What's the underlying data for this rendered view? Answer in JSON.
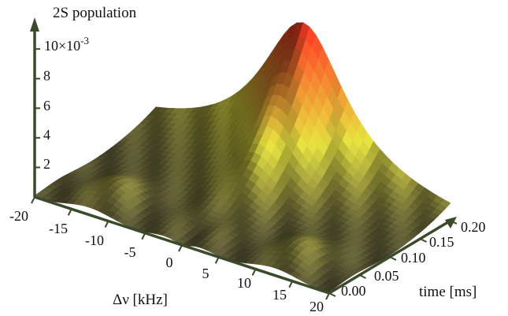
{
  "chart_data": {
    "type": "surface",
    "zlabel": "2S population",
    "zscale_label": "10×10",
    "zscale_exp": "-3",
    "z_ticks": [
      "2",
      "4",
      "6",
      "8"
    ],
    "xlabel": "Δν [kHz]",
    "x_ticks": [
      "-20",
      "-15",
      "-10",
      "-5",
      "0",
      "5",
      "10",
      "15",
      "20"
    ],
    "ylabel": "time [ms]",
    "y_ticks": [
      "0.00",
      "0.05",
      "0.10",
      "0.15",
      "0.20"
    ],
    "xlim": [
      -20,
      20
    ],
    "ylim": [
      0,
      0.2
    ],
    "zlim": [
      0,
      0.011
    ],
    "peak": {
      "detuning_khz": 0,
      "time_ms": 0.2,
      "population": 0.0105
    },
    "colors": {
      "axis": "#3a4a2a",
      "low": "#5b5838",
      "mid": "#c9c638",
      "high": "#e2231d"
    }
  }
}
